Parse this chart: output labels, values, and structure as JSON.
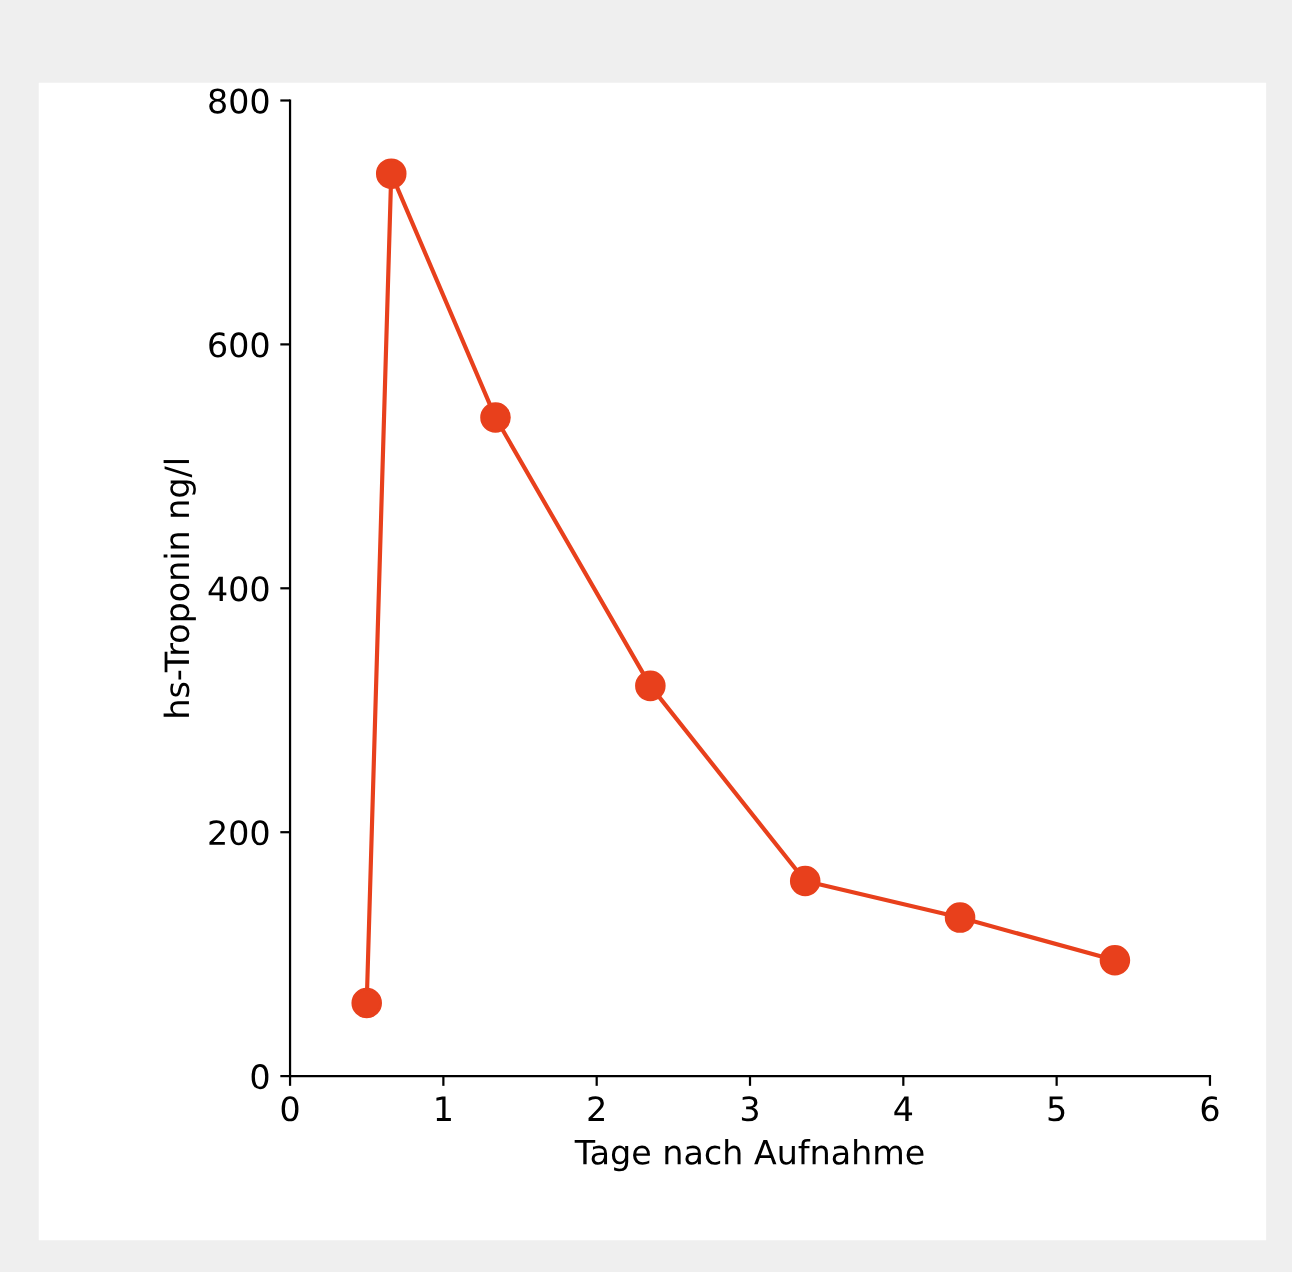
{
  "chart_data": {
    "type": "line",
    "xlabel": "Tage nach Aufnahme",
    "ylabel": "hs-Troponin ng/l",
    "x": [
      0.5,
      0.66,
      1.34,
      2.35,
      3.36,
      4.37,
      5.38
    ],
    "series": [
      {
        "color": "#e8401c",
        "values": [
          60,
          740,
          540,
          320,
          160,
          130,
          95
        ]
      }
    ],
    "xlim": [
      0,
      6
    ],
    "xticks": [
      0,
      1,
      2,
      3,
      4,
      5,
      6
    ],
    "ylim": [
      0,
      800
    ],
    "yticks": [
      0,
      200,
      400,
      600,
      800
    ],
    "grid": false,
    "legend": false,
    "marker": "circle",
    "line_style": "solid"
  }
}
